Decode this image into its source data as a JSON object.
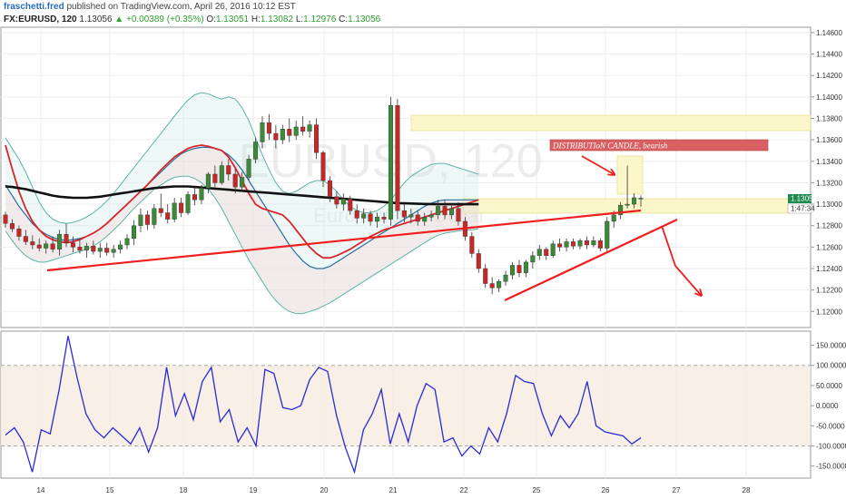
{
  "header": {
    "author": "fraschetti.fred",
    "published": "published on TradingView.com, April 26, 2016 10:12 EST",
    "symbol": "FX:EURUSD, 120",
    "last": "1.13056",
    "change": "▲ +0.00389 (+0.35%)",
    "o_label": "O:",
    "o_value": "1.13051",
    "h_label": "H:",
    "h_value": "1.13082",
    "l_label": "L:",
    "l_value": "1.12976",
    "c_label": "C:",
    "c_value": "1.13056"
  },
  "watermark": {
    "main": "EURUSD, 120",
    "sub": "Euro Fx/U.S. Dollar"
  },
  "annotations": {
    "distribution_label": "DISTRIBUTIoN CANDLE, bearish",
    "last_price_tag": "1.13056",
    "countdown_tag": "1:47:34"
  },
  "colors": {
    "bull": "#3a8a3a",
    "bear": "#c62828",
    "bb_outer": "#5cb3a8",
    "bb_inner": "#2b6d9a",
    "ema_red": "#d7262b",
    "sma_black": "#111111",
    "cci": "#2a2ad6",
    "trend": "#f01e1e",
    "zone_fill": "#fbf6c2",
    "label_fill": "#d95f63"
  },
  "chart_data": [
    {
      "type": "candlestick",
      "symbol": "FX:EURUSD",
      "interval": "120",
      "x_tick_labels": [
        "14",
        "15",
        "18",
        "19",
        "20",
        "21",
        "22",
        "25",
        "26",
        "27",
        "28"
      ],
      "y_axis": {
        "ylim": [
          1.1185,
          1.1465
        ],
        "tick_labels": [
          "1.14600",
          "1.14400",
          "1.14200",
          "1.14000",
          "1.13800",
          "1.13600",
          "1.13400",
          "1.13200",
          "1.13000",
          "1.12800",
          "1.12600",
          "1.12400",
          "1.12200",
          "1.12000"
        ],
        "ticks": [
          1.146,
          1.144,
          1.142,
          1.14,
          1.138,
          1.136,
          1.134,
          1.132,
          1.13,
          1.128,
          1.126,
          1.124,
          1.122,
          1.12
        ]
      },
      "candles": [
        [
          1.129,
          1.1293,
          1.1278,
          1.1282
        ],
        [
          1.1282,
          1.1286,
          1.1274,
          1.1277
        ],
        [
          1.1277,
          1.128,
          1.1266,
          1.127
        ],
        [
          1.127,
          1.1276,
          1.1262,
          1.1265
        ],
        [
          1.1265,
          1.1271,
          1.1258,
          1.1262
        ],
        [
          1.1262,
          1.1268,
          1.1256,
          1.1259
        ],
        [
          1.1259,
          1.1266,
          1.1254,
          1.1263
        ],
        [
          1.1263,
          1.127,
          1.1255,
          1.1258
        ],
        [
          1.1258,
          1.1276,
          1.1252,
          1.1272
        ],
        [
          1.1272,
          1.1282,
          1.126,
          1.1264
        ],
        [
          1.1264,
          1.127,
          1.1255,
          1.126
        ],
        [
          1.126,
          1.1268,
          1.1254,
          1.1257
        ],
        [
          1.1257,
          1.1264,
          1.125,
          1.1261
        ],
        [
          1.1261,
          1.1266,
          1.1253,
          1.1256
        ],
        [
          1.1256,
          1.1264,
          1.125,
          1.1259
        ],
        [
          1.1259,
          1.1264,
          1.1252,
          1.1255
        ],
        [
          1.1255,
          1.1262,
          1.125,
          1.1258
        ],
        [
          1.1258,
          1.1266,
          1.1254,
          1.1262
        ],
        [
          1.1262,
          1.1272,
          1.1258,
          1.1268
        ],
        [
          1.1268,
          1.1285,
          1.1262,
          1.128
        ],
        [
          1.128,
          1.1296,
          1.1274,
          1.129
        ],
        [
          1.129,
          1.1294,
          1.1276,
          1.1281
        ],
        [
          1.1281,
          1.13,
          1.1277,
          1.1296
        ],
        [
          1.1296,
          1.131,
          1.1288,
          1.1292
        ],
        [
          1.1292,
          1.13,
          1.1282,
          1.1286
        ],
        [
          1.1286,
          1.1306,
          1.1283,
          1.1301
        ],
        [
          1.1301,
          1.1306,
          1.1288,
          1.1292
        ],
        [
          1.1292,
          1.1312,
          1.129,
          1.1309
        ],
        [
          1.1309,
          1.1316,
          1.1299,
          1.1304
        ],
        [
          1.1304,
          1.1318,
          1.13,
          1.1315
        ],
        [
          1.1315,
          1.133,
          1.131,
          1.1328
        ],
        [
          1.1328,
          1.1336,
          1.1316,
          1.132
        ],
        [
          1.132,
          1.134,
          1.1318,
          1.1336
        ],
        [
          1.1336,
          1.1342,
          1.1322,
          1.1328
        ],
        [
          1.1328,
          1.1334,
          1.131,
          1.1316
        ],
        [
          1.1316,
          1.133,
          1.1312,
          1.1325
        ],
        [
          1.1325,
          1.1346,
          1.1322,
          1.1342
        ],
        [
          1.1342,
          1.1362,
          1.1338,
          1.1358
        ],
        [
          1.1358,
          1.1382,
          1.1352,
          1.1376
        ],
        [
          1.1376,
          1.1384,
          1.136,
          1.1366
        ],
        [
          1.1366,
          1.1374,
          1.1352,
          1.136
        ],
        [
          1.136,
          1.1374,
          1.1356,
          1.137
        ],
        [
          1.137,
          1.138,
          1.1358,
          1.1364
        ],
        [
          1.1364,
          1.1378,
          1.136,
          1.1372
        ],
        [
          1.1372,
          1.1382,
          1.1364,
          1.1368
        ],
        [
          1.1368,
          1.1378,
          1.1362,
          1.1374
        ],
        [
          1.1374,
          1.138,
          1.1342,
          1.1348
        ],
        [
          1.1348,
          1.135,
          1.1316,
          1.1322
        ],
        [
          1.1322,
          1.1326,
          1.1302,
          1.1307
        ],
        [
          1.1307,
          1.1312,
          1.1296,
          1.13
        ],
        [
          1.13,
          1.131,
          1.1294,
          1.1305
        ],
        [
          1.1305,
          1.1308,
          1.129,
          1.1294
        ],
        [
          1.1294,
          1.13,
          1.1282,
          1.1287
        ],
        [
          1.1287,
          1.1296,
          1.1282,
          1.1291
        ],
        [
          1.1291,
          1.1294,
          1.128,
          1.1284
        ],
        [
          1.1284,
          1.1292,
          1.1278,
          1.1288
        ],
        [
          1.1288,
          1.1292,
          1.1282,
          1.1286
        ],
        [
          1.1286,
          1.14,
          1.128,
          1.1392
        ],
        [
          1.1392,
          1.1398,
          1.1286,
          1.1294
        ],
        [
          1.1294,
          1.13,
          1.1283,
          1.1288
        ],
        [
          1.1288,
          1.1296,
          1.1282,
          1.129
        ],
        [
          1.129,
          1.1294,
          1.128,
          1.1284
        ],
        [
          1.1284,
          1.1292,
          1.128,
          1.1288
        ],
        [
          1.1288,
          1.1294,
          1.1284,
          1.129
        ],
        [
          1.129,
          1.1304,
          1.1286,
          1.1298
        ],
        [
          1.1298,
          1.1304,
          1.1286,
          1.129
        ],
        [
          1.129,
          1.13,
          1.1286,
          1.1296
        ],
        [
          1.1296,
          1.1302,
          1.128,
          1.1284
        ],
        [
          1.1284,
          1.1288,
          1.1266,
          1.127
        ],
        [
          1.127,
          1.1274,
          1.125,
          1.1254
        ],
        [
          1.1254,
          1.1258,
          1.1236,
          1.124
        ],
        [
          1.124,
          1.1244,
          1.1222,
          1.1226
        ],
        [
          1.1226,
          1.1232,
          1.1216,
          1.1222
        ],
        [
          1.1222,
          1.123,
          1.1218,
          1.1228
        ],
        [
          1.1228,
          1.1238,
          1.1224,
          1.1234
        ],
        [
          1.1234,
          1.1246,
          1.123,
          1.1243
        ],
        [
          1.1243,
          1.1248,
          1.1232,
          1.1236
        ],
        [
          1.1236,
          1.1248,
          1.1232,
          1.1246
        ],
        [
          1.1246,
          1.1256,
          1.124,
          1.1252
        ],
        [
          1.1252,
          1.1262,
          1.1248,
          1.1258
        ],
        [
          1.1258,
          1.126,
          1.1248,
          1.1252
        ],
        [
          1.1252,
          1.1266,
          1.125,
          1.1263
        ],
        [
          1.1263,
          1.1268,
          1.1256,
          1.126
        ],
        [
          1.126,
          1.1268,
          1.1256,
          1.1265
        ],
        [
          1.1265,
          1.1268,
          1.1258,
          1.1261
        ],
        [
          1.1261,
          1.1268,
          1.1258,
          1.1266
        ],
        [
          1.1266,
          1.127,
          1.1258,
          1.1262
        ],
        [
          1.1262,
          1.127,
          1.126,
          1.1266
        ],
        [
          1.1266,
          1.1268,
          1.1256,
          1.1259
        ],
        [
          1.1259,
          1.1288,
          1.1256,
          1.1284
        ],
        [
          1.1284,
          1.1294,
          1.1278,
          1.129
        ],
        [
          1.129,
          1.1302,
          1.1286,
          1.1299
        ],
        [
          1.1299,
          1.1336,
          1.1296,
          1.13
        ],
        [
          1.13,
          1.131,
          1.1296,
          1.1306
        ],
        [
          1.13051,
          1.13082,
          1.12976,
          1.13056
        ]
      ],
      "indicators": [
        {
          "type": "bollinger",
          "band": "upper",
          "values": [
            1.1362,
            1.1352,
            1.1342,
            1.133,
            1.1316,
            1.1302,
            1.1292,
            1.1286,
            1.1283,
            1.1282,
            1.1283,
            1.1285,
            1.1288,
            1.1292,
            1.1297,
            1.1303,
            1.131,
            1.1318,
            1.1326,
            1.1334,
            1.1342,
            1.135,
            1.1358,
            1.1366,
            1.1374,
            1.1382,
            1.139,
            1.1397,
            1.1402,
            1.1404,
            1.1403,
            1.14,
            1.1398,
            1.14,
            1.1398,
            1.139,
            1.1378,
            1.1362,
            1.1346,
            1.1332,
            1.132,
            1.1312,
            1.131,
            1.1312,
            1.1316,
            1.132,
            1.1322,
            1.1322,
            1.1318,
            1.1312,
            1.1304,
            1.1298,
            1.1294,
            1.1292,
            1.1292,
            1.1294,
            1.1298,
            1.1304,
            1.1312,
            1.132,
            1.1326,
            1.133,
            1.1334,
            1.1337,
            1.1338,
            1.1338,
            1.1336,
            1.1334,
            1.1332,
            1.133,
            1.1328
          ]
        },
        {
          "type": "bollinger",
          "band": "middle",
          "values": [
            1.1318,
            1.1308,
            1.1298,
            1.129,
            1.1282,
            1.1276,
            1.1272,
            1.1269,
            1.1267,
            1.1266,
            1.1267,
            1.1268,
            1.127,
            1.1273,
            1.1277,
            1.1282,
            1.1288,
            1.1294,
            1.13,
            1.1306,
            1.1312,
            1.1318,
            1.1324,
            1.133,
            1.1336,
            1.1342,
            1.1347,
            1.135,
            1.1352,
            1.1353,
            1.1353,
            1.1352,
            1.135,
            1.1346,
            1.134,
            1.1332,
            1.1322,
            1.1312,
            1.1302,
            1.1292,
            1.1282,
            1.1272,
            1.1262,
            1.1254,
            1.1247,
            1.1242,
            1.124,
            1.124,
            1.1242,
            1.1246,
            1.125,
            1.1254,
            1.1258,
            1.1262,
            1.1266,
            1.127,
            1.1274,
            1.1278,
            1.1282,
            1.1286,
            1.129,
            1.1294,
            1.1298,
            1.1301,
            1.1303,
            1.1304,
            1.1304,
            1.1304,
            1.1304,
            1.1304,
            1.1304
          ]
        },
        {
          "type": "bollinger",
          "band": "lower",
          "values": [
            1.1275,
            1.1266,
            1.1258,
            1.1252,
            1.1248,
            1.1246,
            1.1246,
            1.1248,
            1.125,
            1.1252,
            1.1254,
            1.1256,
            1.1258,
            1.1261,
            1.1265,
            1.127,
            1.1276,
            1.1282,
            1.1289,
            1.1296,
            1.1302,
            1.1308,
            1.1314,
            1.1318,
            1.1322,
            1.1325,
            1.1326,
            1.1326,
            1.1324,
            1.132,
            1.1314,
            1.1306,
            1.1296,
            1.1284,
            1.1272,
            1.126,
            1.1248,
            1.1238,
            1.1228,
            1.1218,
            1.121,
            1.1204,
            1.12,
            1.1198,
            1.1198,
            1.12,
            1.1202,
            1.1205,
            1.1208,
            1.1212,
            1.1216,
            1.122,
            1.1224,
            1.1228,
            1.1232,
            1.1236,
            1.124,
            1.1244,
            1.1248,
            1.1252,
            1.1256,
            1.126,
            1.1264,
            1.1268,
            1.1271,
            1.1273,
            1.1274,
            1.1275,
            1.1276,
            1.1276,
            1.1277
          ]
        },
        {
          "type": "ema",
          "color": "red",
          "values": [
            1.1355,
            1.1333,
            1.1312,
            1.1296,
            1.1284,
            1.1276,
            1.127,
            1.1267,
            1.1265,
            1.1264,
            1.1265,
            1.1267,
            1.127,
            1.1273,
            1.1277,
            1.1282,
            1.1288,
            1.1294,
            1.13,
            1.1306,
            1.1312,
            1.1318,
            1.1325,
            1.1332,
            1.1338,
            1.1344,
            1.1348,
            1.1352,
            1.1354,
            1.1355,
            1.1354,
            1.1352,
            1.135,
            1.1344,
            1.1334,
            1.1322,
            1.131,
            1.13,
            1.1296,
            1.1294,
            1.1292,
            1.129,
            1.1284,
            1.1276,
            1.1268,
            1.126,
            1.1254,
            1.125,
            1.125,
            1.1252,
            1.1255,
            1.1258,
            1.1262,
            1.1266,
            1.127,
            1.1273,
            1.1276,
            1.1278,
            1.128,
            1.1282,
            1.1284,
            1.1286,
            1.1288,
            1.129,
            1.1292,
            1.1294,
            1.1296,
            1.1298,
            1.13,
            1.1302,
            1.1304
          ]
        },
        {
          "type": "sma",
          "color": "black",
          "values": [
            1.13165,
            1.1316,
            1.1315,
            1.1314,
            1.13125,
            1.1311,
            1.13095,
            1.1308,
            1.1307,
            1.13065,
            1.1306,
            1.1306,
            1.1306,
            1.13065,
            1.1307,
            1.1308,
            1.1309,
            1.131,
            1.1311,
            1.1312,
            1.1313,
            1.1314,
            1.1315,
            1.13155,
            1.1316,
            1.13165,
            1.13165,
            1.13165,
            1.1316,
            1.13155,
            1.1315,
            1.13145,
            1.1314,
            1.13135,
            1.1313,
            1.13125,
            1.1312,
            1.13115,
            1.1311,
            1.13105,
            1.131,
            1.13095,
            1.1309,
            1.13085,
            1.1308,
            1.13075,
            1.1307,
            1.13065,
            1.1306,
            1.13055,
            1.1305,
            1.13045,
            1.1304,
            1.13035,
            1.1303,
            1.13025,
            1.1302,
            1.13015,
            1.1301,
            1.13008,
            1.13006,
            1.13004,
            1.13002,
            1.13001,
            1.13,
            1.13,
            1.13,
            1.13,
            1.13,
            1.13,
            1.13
          ]
        }
      ]
    },
    {
      "type": "line",
      "name": "CCI",
      "ylim": [
        -180,
        185
      ],
      "y_tick_labels": [
        "150.0000",
        "100.0000",
        "50.0000",
        "0.0000",
        "-50.0000",
        "-100.0000",
        "-150.0000"
      ],
      "y_ticks": [
        150,
        100,
        50,
        0,
        -50,
        -100,
        -150
      ],
      "band": [
        -100,
        100
      ],
      "values": [
        -73,
        -55,
        -90,
        -165,
        -60,
        -70,
        40,
        173,
        70,
        -20,
        -60,
        -80,
        -55,
        -75,
        -95,
        -55,
        -115,
        -55,
        95,
        -25,
        30,
        -35,
        60,
        95,
        -40,
        -10,
        -90,
        -55,
        -100,
        90,
        80,
        -5,
        -10,
        0,
        65,
        95,
        85,
        -25,
        -105,
        -165,
        -60,
        -20,
        40,
        -95,
        -20,
        -90,
        0,
        55,
        40,
        -90,
        -80,
        -125,
        -100,
        -120,
        -55,
        -90,
        -20,
        75,
        60,
        55,
        -20,
        -75,
        -25,
        -55,
        -20,
        60,
        -50,
        -65,
        -70,
        -75,
        -95,
        -80
      ]
    }
  ]
}
